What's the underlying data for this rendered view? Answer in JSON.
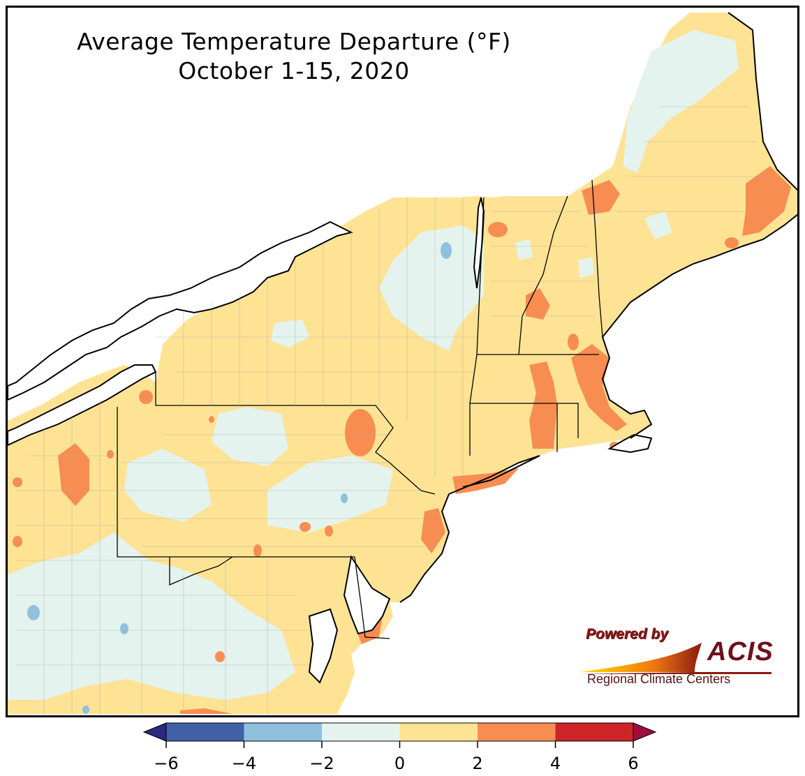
{
  "title": {
    "line1": "Average Temperature Departure (°F)",
    "line2": "October 1-15, 2020"
  },
  "legend": {
    "ticks": [
      "−6",
      "−4",
      "−2",
      "0",
      "2",
      "4",
      "6"
    ],
    "bins": [
      {
        "from": -6,
        "to": -4,
        "color": "#4060a8"
      },
      {
        "from": -4,
        "to": -2,
        "color": "#8fc1de"
      },
      {
        "from": -2,
        "to": 0,
        "color": "#e4f3ee"
      },
      {
        "from": 0,
        "to": 2,
        "color": "#fee395"
      },
      {
        "from": 2,
        "to": 4,
        "color": "#f88d52"
      },
      {
        "from": 4,
        "to": 6,
        "color": "#cd2428"
      }
    ],
    "extend_low_color": "#2c2a7c",
    "extend_high_color": "#a00f3c"
  },
  "logo": {
    "powered_by": "Powered by",
    "acis": "ACIS",
    "subtitle": "Regional Climate Centers"
  },
  "colors": {
    "land_default": "#fee395",
    "water": "#ffffff",
    "outline": "#000000",
    "county_lines": "#a8a8a8"
  }
}
